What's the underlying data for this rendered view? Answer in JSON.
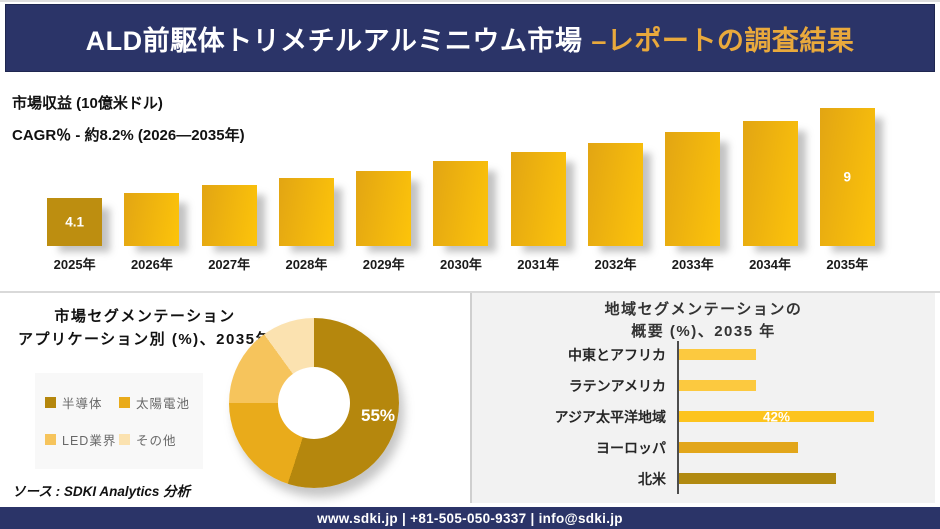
{
  "header": {
    "title_main": "ALD前駆体トリメチルアルミニウム市場",
    "title_accent": "–レポートの調査結果"
  },
  "revenue_section": {
    "metric_label": "市場収益 (10億米ドル)",
    "cagr_label": "CAGR％ - 約8.2% (2026―2035年)"
  },
  "pie_section": {
    "title_line1": "市場セグメンテーション",
    "title_line2": "アプリケーション別 (%)、2035年",
    "source": "ソース : SDKI Analytics 分析"
  },
  "region_section": {
    "title_line1": "地域セグメンテーションの",
    "title_line2": "概要 (%)、2035 年"
  },
  "footer": {
    "contact": "www.sdki.jp | +81-505-050-9337 | info@sdki.jp"
  },
  "colors": {
    "navy": "#2b3468",
    "accent_gold": "#e9a93c",
    "divider": "#d9d9d9",
    "section_bg": "#f2f2f2",
    "legend_bg": "#f8f8f8",
    "axis": "#4d4d4d",
    "bar_first": "#bd8e10",
    "bar_gradient_start": "#e2a513",
    "bar_gradient_end": "#fdc40a",
    "label_on_bar": "#ffffff"
  },
  "chart_data": [
    {
      "id": "revenue_bars",
      "type": "bar",
      "title": "市場収益 (10億米ドル)",
      "subtitle": "CAGR％ - 約8.2% (2026―2035年)",
      "categories": [
        "2025年",
        "2026年",
        "2027年",
        "2028年",
        "2029年",
        "2030年",
        "2031年",
        "2032年",
        "2033年",
        "2034年",
        "2035年"
      ],
      "values": [
        4.1,
        4.4,
        4.8,
        5.2,
        5.6,
        6.1,
        6.6,
        7.1,
        7.7,
        8.3,
        9
      ],
      "value_labels": [
        "4.1",
        "",
        "",
        "",
        "",
        "",
        "",
        "",
        "",
        "",
        "9"
      ],
      "ylabel": "10億米ドル",
      "xlabel": "",
      "grid": false,
      "legend": false
    },
    {
      "id": "application_donut",
      "type": "pie",
      "donut": true,
      "title": "市場セグメンテーション アプリケーション別 (%)、2035年",
      "labels": [
        "半導体",
        "太陽電池",
        "LED業界",
        "その他"
      ],
      "values": [
        55,
        20,
        15,
        10
      ],
      "colors": [
        "#b5870d",
        "#e9ab1b",
        "#f6c45c",
        "#fbe2b0"
      ],
      "value_labels": [
        "55%",
        "",
        "",
        ""
      ],
      "legend_position": "left"
    },
    {
      "id": "region_bars",
      "type": "bar",
      "orientation": "horizontal",
      "title": "地域セグメンテーションの概要 (%)、2035 年",
      "categories": [
        "中東とアフリカ",
        "ラテンアメリカ",
        "アジア太平洋地域",
        "ヨーロッパ",
        "北米"
      ],
      "values": [
        5,
        5,
        42,
        18,
        30
      ],
      "value_labels": [
        "",
        "",
        "42%",
        "",
        ""
      ],
      "colors": [
        "#fcc93f",
        "#fcc93f",
        "#fdc41e",
        "#e2a61b",
        "#b18a11"
      ],
      "grid": false,
      "legend": false
    }
  ]
}
